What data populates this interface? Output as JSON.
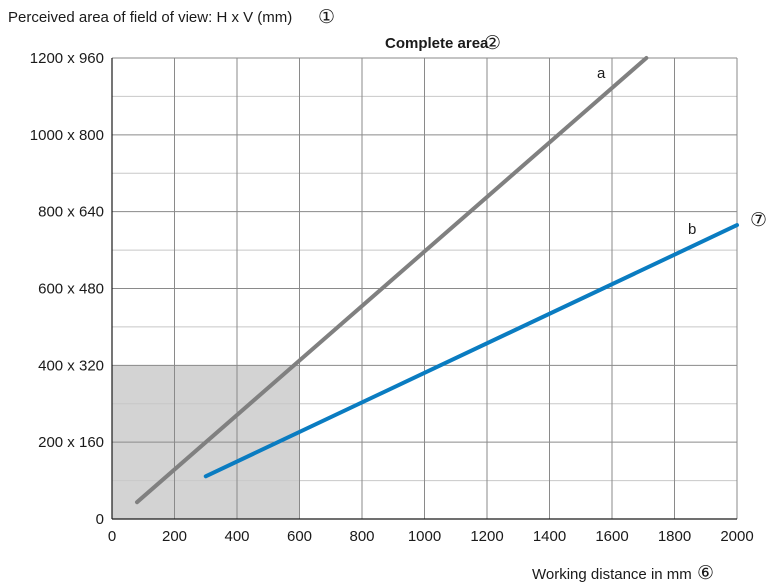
{
  "chart_data": {
    "type": "line",
    "ylabel": "Perceived area of field of view: H x V (mm)",
    "ylabel_marker": "①",
    "highlight_label": "Complete area",
    "highlight_marker": "②",
    "xlabel": "Working distance in mm",
    "xlabel_marker": "⑥",
    "series_b_marker": "⑦",
    "xlim": [
      0,
      2000
    ],
    "ylim": [
      0,
      960
    ],
    "x_ticks": [
      0,
      200,
      400,
      600,
      800,
      1000,
      1200,
      1400,
      1600,
      1800,
      2000
    ],
    "x_tick_labels": [
      "0",
      "200",
      "400",
      "600",
      "800",
      "1000",
      "1200",
      "1400",
      "1600",
      "1800",
      "2000"
    ],
    "y_ticks": [
      0,
      160,
      320,
      480,
      640,
      800,
      960
    ],
    "y_tick_labels": [
      "0",
      "200 x 160",
      "400 x 320",
      "600 x 480",
      "800 x 640",
      "1000 x 800",
      "1200 x 960"
    ],
    "grid": true,
    "highlight_region": {
      "x": [
        0,
        600
      ],
      "y": [
        0,
        320
      ]
    },
    "series": [
      {
        "name": "a",
        "x": [
          80,
          1710
        ],
        "y": [
          35,
          960
        ],
        "color": "#808080"
      },
      {
        "name": "b",
        "x": [
          300,
          2000
        ],
        "y": [
          89,
          612
        ],
        "color": "#0a7cc1"
      }
    ],
    "colors": {
      "grid": "#8a8a8a",
      "minor_grid": "#c8c8c8",
      "highlight": "#d3d3d3",
      "axis": "#1a1a1a"
    }
  }
}
